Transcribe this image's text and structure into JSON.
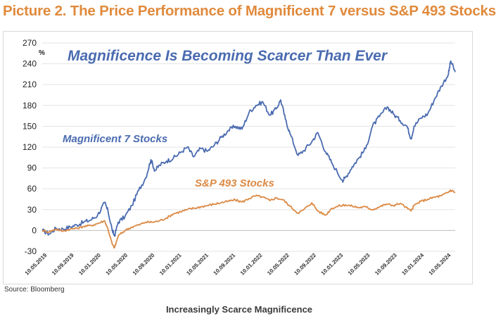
{
  "page": {
    "title": "Picture 2. The Price Performance of Magnificent 7 versus S&P 493 Stocks",
    "source": "Source: Bloomberg",
    "caption": "Increasingly Scarce Magnificence"
  },
  "chart_data": {
    "type": "line",
    "title": "Magnificence Is Becoming Scarcer Than Ever",
    "ylabel": "%",
    "xlabel": "",
    "ylim": [
      -30,
      270
    ],
    "yticks": [
      -30,
      0,
      30,
      60,
      90,
      120,
      150,
      180,
      210,
      240,
      270
    ],
    "x_tick_labels": [
      "10.05.2019",
      "10.09.2019",
      "10.01.2020",
      "10.05.2020",
      "10.09.2020",
      "10.01.2021",
      "10.05.2021",
      "10.09.2021",
      "10.01.2022",
      "10.05.2022",
      "10.09.2022",
      "10.01.2023",
      "10.05.2023",
      "10.09.2023",
      "10.01.2024",
      "10.05.2024"
    ],
    "grid": "horizontal",
    "legend": "none",
    "colors": {
      "mag7": "#4a6bb0",
      "sp493": "#dc8a45",
      "title": "#4a6bb0",
      "page_title": "#e08a3c"
    },
    "annotations": [
      {
        "text": "Magnificent 7 Stocks",
        "series": "mag7"
      },
      {
        "text": "S&P 493 Stocks",
        "series": "sp493"
      }
    ],
    "series": [
      {
        "name": "Magnificent 7 Stocks",
        "key": "mag7",
        "x": [
          "2019-05-10",
          "2019-06-10",
          "2019-07-10",
          "2019-08-10",
          "2019-09-10",
          "2019-10-10",
          "2019-11-10",
          "2019-12-10",
          "2020-01-10",
          "2020-02-10",
          "2020-02-25",
          "2020-03-15",
          "2020-03-25",
          "2020-04-10",
          "2020-05-10",
          "2020-06-10",
          "2020-07-10",
          "2020-08-10",
          "2020-09-02",
          "2020-09-20",
          "2020-10-10",
          "2020-11-10",
          "2020-12-10",
          "2021-01-10",
          "2021-02-10",
          "2021-03-10",
          "2021-04-10",
          "2021-05-10",
          "2021-06-10",
          "2021-07-10",
          "2021-08-10",
          "2021-09-10",
          "2021-10-10",
          "2021-11-10",
          "2021-12-10",
          "2022-01-10",
          "2022-02-10",
          "2022-03-10",
          "2022-03-30",
          "2022-04-20",
          "2022-05-10",
          "2022-06-15",
          "2022-07-10",
          "2022-08-15",
          "2022-09-10",
          "2022-10-15",
          "2022-11-10",
          "2022-12-28",
          "2023-01-10",
          "2023-02-10",
          "2023-03-10",
          "2023-04-10",
          "2023-05-10",
          "2023-06-10",
          "2023-07-15",
          "2023-08-10",
          "2023-09-10",
          "2023-10-10",
          "2023-10-28",
          "2023-11-10",
          "2023-12-10",
          "2024-01-10",
          "2024-02-10",
          "2024-03-10",
          "2024-04-10",
          "2024-04-20",
          "2024-05-10"
        ],
        "values": [
          0,
          -5,
          3,
          2,
          5,
          8,
          12,
          15,
          22,
          40,
          28,
          0,
          -8,
          12,
          20,
          36,
          58,
          76,
          102,
          86,
          94,
          100,
          104,
          112,
          120,
          106,
          118,
          114,
          123,
          134,
          144,
          150,
          146,
          170,
          180,
          185,
          166,
          175,
          188,
          160,
          140,
          108,
          115,
          128,
          141,
          113,
          98,
          72,
          76,
          92,
          104,
          118,
          150,
          164,
          178,
          168,
          158,
          150,
          132,
          150,
          162,
          168,
          190,
          208,
          225,
          244,
          228
        ]
      },
      {
        "name": "S&P 493 Stocks",
        "key": "sp493",
        "x": [
          "2019-05-10",
          "2019-06-10",
          "2019-07-10",
          "2019-08-10",
          "2019-09-10",
          "2019-10-10",
          "2019-11-10",
          "2019-12-10",
          "2020-01-10",
          "2020-02-10",
          "2020-02-25",
          "2020-03-15",
          "2020-03-25",
          "2020-04-10",
          "2020-05-10",
          "2020-06-10",
          "2020-07-10",
          "2020-08-10",
          "2020-09-10",
          "2020-10-10",
          "2020-11-10",
          "2020-12-10",
          "2021-01-10",
          "2021-02-10",
          "2021-03-10",
          "2021-04-10",
          "2021-05-10",
          "2021-06-10",
          "2021-07-10",
          "2021-08-10",
          "2021-09-10",
          "2021-10-10",
          "2021-11-10",
          "2021-12-10",
          "2022-01-10",
          "2022-02-10",
          "2022-03-10",
          "2022-04-10",
          "2022-05-10",
          "2022-06-15",
          "2022-07-10",
          "2022-08-15",
          "2022-09-10",
          "2022-10-15",
          "2022-11-10",
          "2022-12-10",
          "2023-01-10",
          "2023-02-10",
          "2023-03-10",
          "2023-04-10",
          "2023-05-10",
          "2023-06-10",
          "2023-07-10",
          "2023-08-10",
          "2023-09-10",
          "2023-10-28",
          "2023-11-10",
          "2023-12-10",
          "2024-01-10",
          "2024-02-10",
          "2024-03-10",
          "2024-04-10",
          "2024-04-20",
          "2024-05-10"
        ],
        "values": [
          0,
          -2,
          2,
          -1,
          2,
          3,
          6,
          7,
          10,
          14,
          2,
          -20,
          -25,
          -8,
          0,
          5,
          8,
          12,
          12,
          14,
          18,
          24,
          27,
          30,
          32,
          34,
          36,
          38,
          40,
          42,
          44,
          41,
          46,
          50,
          48,
          43,
          47,
          44,
          35,
          25,
          30,
          40,
          28,
          22,
          32,
          35,
          37,
          35,
          33,
          34,
          30,
          34,
          38,
          36,
          39,
          28,
          36,
          42,
          45,
          48,
          50,
          55,
          58,
          55
        ]
      }
    ]
  }
}
